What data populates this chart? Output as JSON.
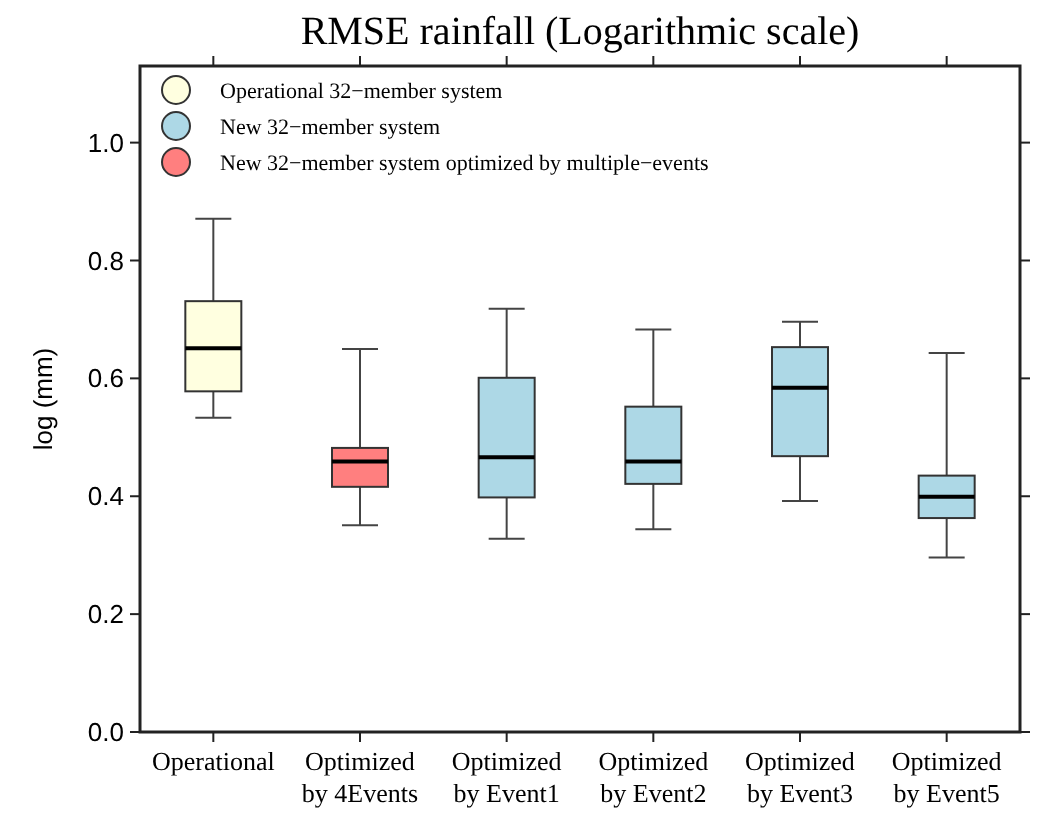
{
  "chart_data": {
    "type": "box",
    "title": "RMSE rainfall (Logarithmic scale)",
    "ylabel": "log (mm)",
    "categories": [
      "Operational",
      "Optimized by 4Events",
      "Optimized by Event1",
      "Optimized by Event2",
      "Optimized by Event3",
      "Optimized by Event5"
    ],
    "ylim": [
      0,
      1.13
    ],
    "yticks": [
      {
        "value": 0,
        "label": "0.0"
      },
      0.2,
      0.4,
      0.6,
      0.8,
      {
        "value": 1,
        "label": "1.0"
      }
    ],
    "grid": false,
    "legend": "top left",
    "series": [
      {
        "name": "Operational 32−member system",
        "color": "#ffffe0",
        "boxes": [
          {
            "low": 0.533,
            "q1": 0.578,
            "median": 0.651,
            "q3": 0.731,
            "high": 0.871
          },
          null,
          null,
          null,
          null,
          null
        ]
      },
      {
        "name": "New 32−member system",
        "color": "#add8e6",
        "boxes": [
          null,
          null,
          {
            "low": 0.328,
            "q1": 0.398,
            "median": 0.466,
            "q3": 0.601,
            "high": 0.718
          },
          {
            "low": 0.344,
            "q1": 0.421,
            "median": 0.459,
            "q3": 0.552,
            "high": 0.683
          },
          {
            "low": 0.392,
            "q1": 0.468,
            "median": 0.584,
            "q3": 0.653,
            "high": 0.696
          },
          {
            "low": 0.296,
            "q1": 0.363,
            "median": 0.399,
            "q3": 0.435,
            "high": 0.643
          }
        ]
      },
      {
        "name": "New 32−member system optimized by multiple−events",
        "color": "#ff7f7f",
        "boxes": [
          null,
          {
            "low": 0.351,
            "q1": 0.416,
            "median": 0.459,
            "q3": 0.482,
            "high": 0.65
          },
          null,
          null,
          null,
          null
        ]
      }
    ]
  }
}
